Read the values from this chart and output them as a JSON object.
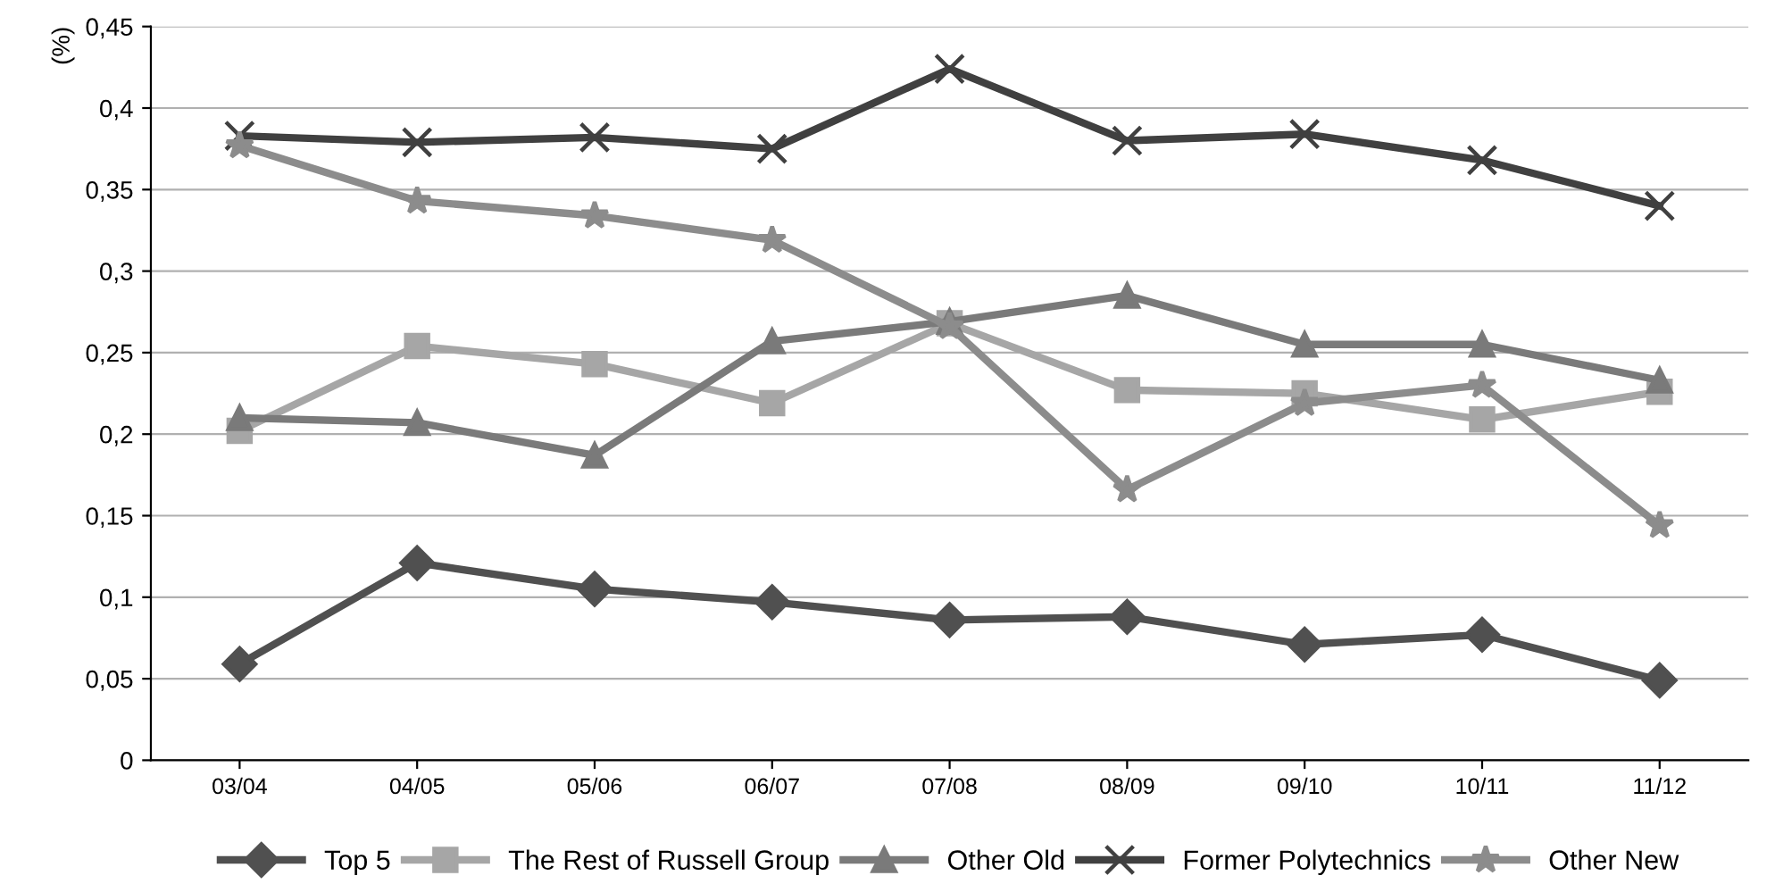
{
  "chart_data": {
    "type": "line",
    "ylabel": "(%)",
    "categories": [
      "03/04",
      "04/05",
      "05/06",
      "06/07",
      "07/08",
      "08/09",
      "09/10",
      "10/11",
      "11/12"
    ],
    "series": [
      {
        "name": "Top 5",
        "color": "#505050",
        "marker": "diamond",
        "values": [
          0.059,
          0.121,
          0.105,
          0.097,
          0.086,
          0.088,
          0.071,
          0.077,
          0.049
        ]
      },
      {
        "name": "The Rest of Russell Group",
        "color": "#a6a6a6",
        "marker": "square",
        "values": [
          0.202,
          0.254,
          0.243,
          0.219,
          0.268,
          0.227,
          0.225,
          0.209,
          0.226
        ]
      },
      {
        "name": "Other Old",
        "color": "#7a7a7a",
        "marker": "triangle",
        "values": [
          0.21,
          0.207,
          0.187,
          0.257,
          0.269,
          0.285,
          0.255,
          0.255,
          0.233
        ]
      },
      {
        "name": "Former Polytechnics",
        "color": "#404040",
        "marker": "cross",
        "values": [
          0.383,
          0.379,
          0.382,
          0.375,
          0.424,
          0.38,
          0.384,
          0.368,
          0.34
        ]
      },
      {
        "name": "Other New",
        "color": "#8c8c8c",
        "marker": "star",
        "values": [
          0.377,
          0.343,
          0.334,
          0.319,
          0.266,
          0.166,
          0.219,
          0.23,
          0.144
        ]
      }
    ],
    "ylim": [
      0,
      0.45
    ],
    "yticks": [
      0,
      {
        "value": 0.05,
        "label": "0,05"
      },
      {
        "value": 0.1,
        "label": "0,1"
      },
      {
        "value": 0.15,
        "label": "0,15"
      },
      {
        "value": 0.2,
        "label": "0,2"
      },
      {
        "value": 0.25,
        "label": "0,25"
      },
      {
        "value": 0.3,
        "label": "0,3"
      },
      {
        "value": 0.35,
        "label": "0,35"
      },
      {
        "value": 0.4,
        "label": "0,4"
      },
      {
        "value": 0.45,
        "label": "0,45"
      }
    ],
    "grid": "y",
    "legend": "bottom",
    "line_style": "solid"
  }
}
